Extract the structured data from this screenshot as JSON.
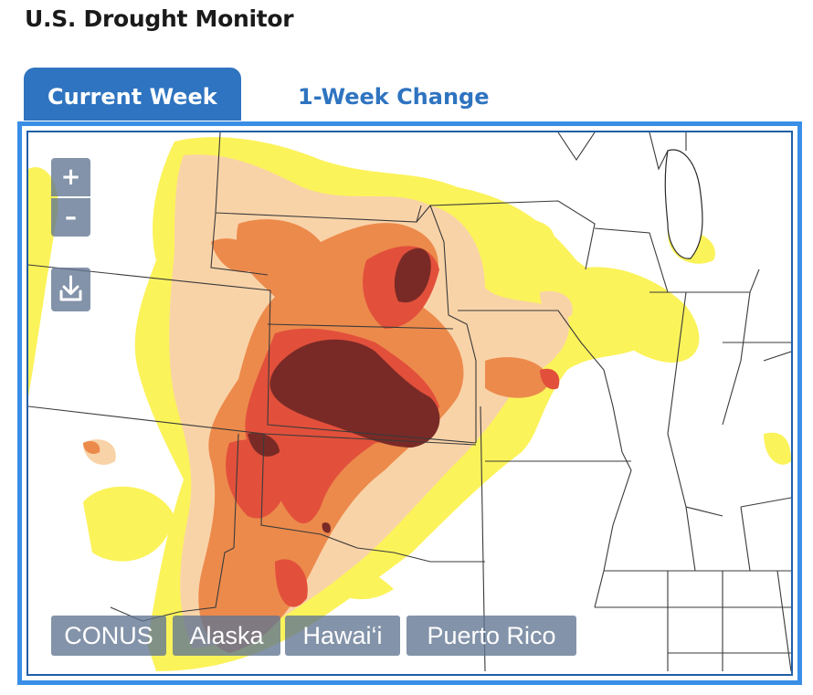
{
  "page": {
    "title": "U.S. Drought Monitor"
  },
  "tabs": [
    {
      "label": "Current Week",
      "active": true
    },
    {
      "label": "1-Week Change",
      "active": false
    }
  ],
  "map_controls": {
    "zoom_in": "+",
    "zoom_out": "–",
    "download_icon": "download-icon"
  },
  "regions": [
    {
      "label": "CONUS"
    },
    {
      "label": "Alaska"
    },
    {
      "label": "Hawai‘i"
    },
    {
      "label": "Puerto Rico"
    }
  ],
  "colors": {
    "accent": "#2f74c0",
    "frame": "#3a8ee6",
    "D0_abnormally_dry": "#fbf35a",
    "D1_moderate": "#f9d3a8",
    "D2_severe": "#ec8a4c",
    "D3_extreme": "#e2503b",
    "D4_exceptional": "#7a2a26"
  }
}
